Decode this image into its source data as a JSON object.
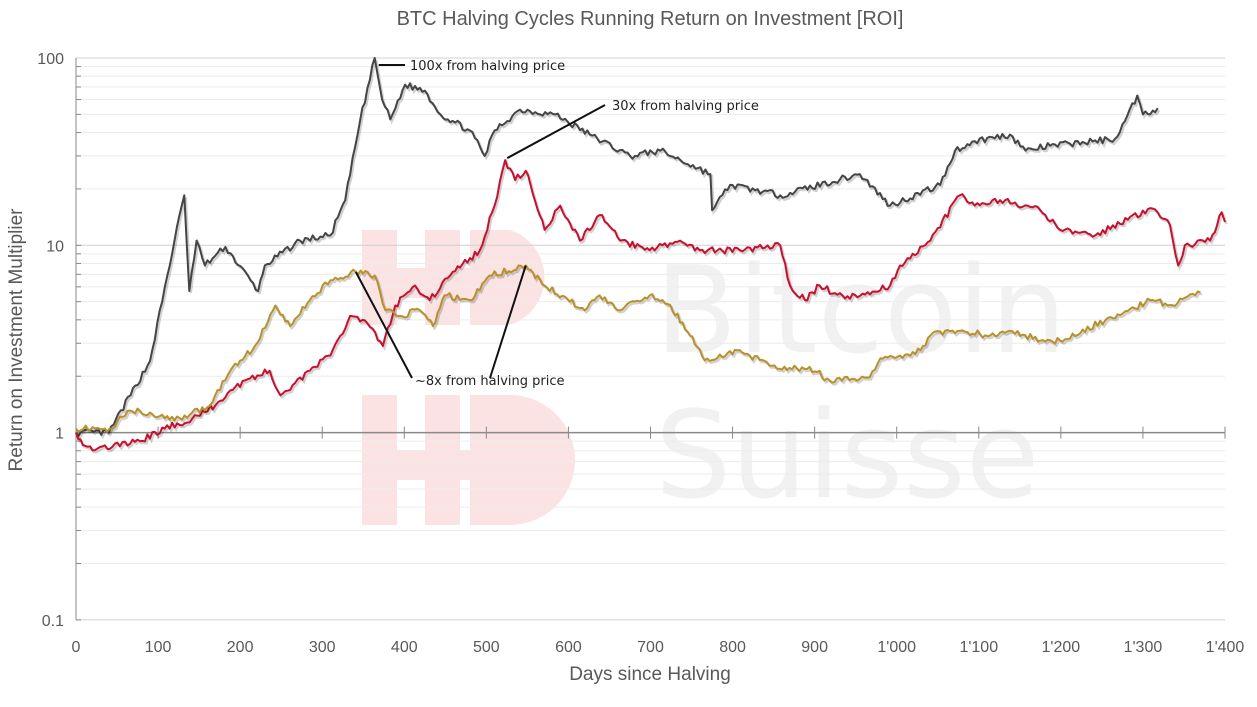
{
  "chart_data": {
    "type": "line",
    "title": "BTC Halving Cycles Running Return on Investment [ROI]",
    "xlabel": "Days since Halving",
    "ylabel": "Return on Investment Multiplier",
    "xlim": [
      0,
      1400
    ],
    "ylim": [
      0.1,
      100
    ],
    "yscale": "log",
    "grid": true,
    "legend": "none",
    "x_ticks": [
      {
        "value": 0,
        "label": "0"
      },
      {
        "value": 100,
        "label": "100"
      },
      {
        "value": 200,
        "label": "200"
      },
      {
        "value": 300,
        "label": "300"
      },
      {
        "value": 400,
        "label": "400"
      },
      {
        "value": 500,
        "label": "500"
      },
      {
        "value": 600,
        "label": "600"
      },
      {
        "value": 700,
        "label": "700"
      },
      {
        "value": 800,
        "label": "800"
      },
      {
        "value": 900,
        "label": "900"
      },
      {
        "value": 1000,
        "label": "1'000"
      },
      {
        "value": 1100,
        "label": "1'100"
      },
      {
        "value": 1200,
        "label": "1'200"
      },
      {
        "value": 1300,
        "label": "1'300"
      },
      {
        "value": 1400,
        "label": "1'400"
      }
    ],
    "y_ticks": [
      {
        "value": 100,
        "label": "100"
      },
      {
        "value": 10,
        "label": "10"
      },
      {
        "value": 1,
        "label": "1"
      },
      {
        "value": 0.1,
        "label": "0.1"
      }
    ],
    "series": [
      {
        "color": "#454545",
        "points": [
          [
            0,
            1
          ],
          [
            40,
            1.0
          ],
          [
            90,
            2.4
          ],
          [
            120,
            10.6
          ],
          [
            132,
            18.5
          ],
          [
            138,
            5.7
          ],
          [
            147,
            10.6
          ],
          [
            157,
            7.8
          ],
          [
            182,
            9.8
          ],
          [
            222,
            5.7
          ],
          [
            230,
            7.8
          ],
          [
            273,
            10.6
          ],
          [
            310,
            11.3
          ],
          [
            328,
            17.4
          ],
          [
            346,
            46
          ],
          [
            364,
            100
          ],
          [
            373,
            60
          ],
          [
            383,
            47
          ],
          [
            401,
            72
          ],
          [
            425,
            67
          ],
          [
            444,
            50
          ],
          [
            480,
            41
          ],
          [
            498,
            30
          ],
          [
            510,
            41
          ],
          [
            541,
            53
          ],
          [
            584,
            50
          ],
          [
            626,
            39
          ],
          [
            675,
            30
          ],
          [
            712,
            32
          ],
          [
            773,
            24
          ],
          [
            775,
            15.4
          ],
          [
            797,
            21
          ],
          [
            858,
            18.5
          ],
          [
            955,
            24
          ],
          [
            992,
            16.3
          ],
          [
            1053,
            21
          ],
          [
            1071,
            32
          ],
          [
            1095,
            36
          ],
          [
            1138,
            39
          ],
          [
            1157,
            32
          ],
          [
            1187,
            34
          ],
          [
            1266,
            37
          ],
          [
            1278,
            46
          ],
          [
            1293,
            63
          ],
          [
            1300,
            50
          ],
          [
            1318,
            54
          ]
        ]
      },
      {
        "color": "#c8102e",
        "points": [
          [
            0,
            1
          ],
          [
            11,
            0.85
          ],
          [
            26,
            0.82
          ],
          [
            78,
            0.9
          ],
          [
            108,
            1.05
          ],
          [
            151,
            1.23
          ],
          [
            176,
            1.48
          ],
          [
            188,
            1.68
          ],
          [
            206,
            1.9
          ],
          [
            236,
            2.14
          ],
          [
            249,
            1.58
          ],
          [
            285,
            2.14
          ],
          [
            310,
            2.58
          ],
          [
            334,
            4.2
          ],
          [
            352,
            3.97
          ],
          [
            374,
            2.9
          ],
          [
            389,
            4.77
          ],
          [
            413,
            6.1
          ],
          [
            431,
            5.1
          ],
          [
            456,
            6.9
          ],
          [
            492,
            9.4
          ],
          [
            510,
            16.3
          ],
          [
            523,
            28.5
          ],
          [
            535,
            22.3
          ],
          [
            548,
            25
          ],
          [
            571,
            12.1
          ],
          [
            590,
            16.3
          ],
          [
            614,
            10.6
          ],
          [
            638,
            14.5
          ],
          [
            663,
            10.6
          ],
          [
            699,
            9.4
          ],
          [
            736,
            10.6
          ],
          [
            760,
            9.4
          ],
          [
            809,
            9.4
          ],
          [
            858,
            10
          ],
          [
            870,
            6.1
          ],
          [
            888,
            5.1
          ],
          [
            906,
            6.1
          ],
          [
            937,
            5.2
          ],
          [
            992,
            6.1
          ],
          [
            1004,
            7.8
          ],
          [
            1041,
            10.6
          ],
          [
            1077,
            18.5
          ],
          [
            1095,
            16.3
          ],
          [
            1126,
            17.4
          ],
          [
            1175,
            15.4
          ],
          [
            1199,
            12.1
          ],
          [
            1242,
            11.3
          ],
          [
            1309,
            15.8
          ],
          [
            1333,
            12.8
          ],
          [
            1343,
            7.8
          ],
          [
            1351,
            10
          ],
          [
            1382,
            10.6
          ],
          [
            1396,
            15
          ],
          [
            1400,
            13.3
          ]
        ]
      },
      {
        "color": "#b8912a",
        "points": [
          [
            0,
            1.05
          ],
          [
            41,
            1.05
          ],
          [
            66,
            1.31
          ],
          [
            90,
            1.28
          ],
          [
            120,
            1.16
          ],
          [
            163,
            1.39
          ],
          [
            188,
            2.14
          ],
          [
            218,
            2.9
          ],
          [
            243,
            4.77
          ],
          [
            261,
            3.7
          ],
          [
            285,
            5.1
          ],
          [
            310,
            6.5
          ],
          [
            341,
            7.2
          ],
          [
            364,
            6.9
          ],
          [
            377,
            4.5
          ],
          [
            395,
            4.2
          ],
          [
            419,
            4.5
          ],
          [
            435,
            3.7
          ],
          [
            449,
            5.4
          ],
          [
            480,
            5.1
          ],
          [
            504,
            6.9
          ],
          [
            548,
            7.8
          ],
          [
            571,
            6.1
          ],
          [
            620,
            4.5
          ],
          [
            638,
            5.4
          ],
          [
            663,
            4.5
          ],
          [
            699,
            5.4
          ],
          [
            724,
            4.8
          ],
          [
            748,
            3.3
          ],
          [
            766,
            2.43
          ],
          [
            809,
            2.75
          ],
          [
            845,
            2.28
          ],
          [
            906,
            2.14
          ],
          [
            912,
            1.9
          ],
          [
            967,
            1.97
          ],
          [
            980,
            2.49
          ],
          [
            1004,
            2.58
          ],
          [
            1029,
            2.75
          ],
          [
            1041,
            3.3
          ],
          [
            1077,
            3.5
          ],
          [
            1114,
            3.3
          ],
          [
            1138,
            3.5
          ],
          [
            1175,
            3.1
          ],
          [
            1199,
            3.1
          ],
          [
            1254,
            3.97
          ],
          [
            1309,
            5.1
          ],
          [
            1333,
            4.8
          ],
          [
            1370,
            5.6
          ]
        ]
      }
    ],
    "annotations": [
      {
        "text": "100x from halving price",
        "targets": [
          [
            364,
            100
          ]
        ]
      },
      {
        "text": "30x from halving price",
        "targets": [
          [
            523,
            28.5
          ]
        ]
      },
      {
        "text": "~8x from halving price",
        "targets": [
          [
            341,
            7.2
          ],
          [
            548,
            7.8
          ]
        ]
      }
    ]
  },
  "watermark": {
    "line1": "Bitcoin",
    "line2": "Suisse"
  }
}
